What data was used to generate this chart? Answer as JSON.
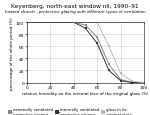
{
  "title": "Keyenberg, north-east window nll, 1990–91",
  "subtitle": "heated church - protective glazing with different types of ventilation",
  "xlabel": "relative humidity on the internal face of the original glass (%)",
  "ylabel": "percentage of the whole period (%)",
  "xlim": [
    0,
    100
  ],
  "ylim": [
    0,
    100
  ],
  "xticks": [
    0,
    20,
    40,
    60,
    80,
    100
  ],
  "yticks": [
    0,
    20,
    40,
    60,
    80,
    100
  ],
  "series": [
    {
      "label": "externally ventilated\nprotective glazing",
      "color": "#888888",
      "marker": "s",
      "x": [
        0,
        40,
        50,
        60,
        70,
        80,
        90,
        100
      ],
      "y": [
        100,
        100,
        95,
        75,
        30,
        5,
        0,
        0
      ]
    },
    {
      "label": "internally ventilated\nprotective glazing",
      "color": "#333333",
      "marker": "s",
      "x": [
        0,
        40,
        50,
        60,
        70,
        80,
        90,
        100
      ],
      "y": [
        100,
        100,
        90,
        65,
        20,
        3,
        0,
        0
      ]
    },
    {
      "label": "glass in its\noriginal state",
      "color": "#bbbbbb",
      "marker": "s",
      "x": [
        0,
        60,
        70,
        80,
        90,
        100
      ],
      "y": [
        100,
        100,
        60,
        15,
        2,
        0
      ]
    }
  ],
  "background_color": "#ffffff",
  "grid_color": "#cccccc",
  "title_fontsize": 4.2,
  "subtitle_fontsize": 3.0,
  "axis_label_fontsize": 3.0,
  "tick_fontsize": 3.2,
  "legend_fontsize": 2.8
}
